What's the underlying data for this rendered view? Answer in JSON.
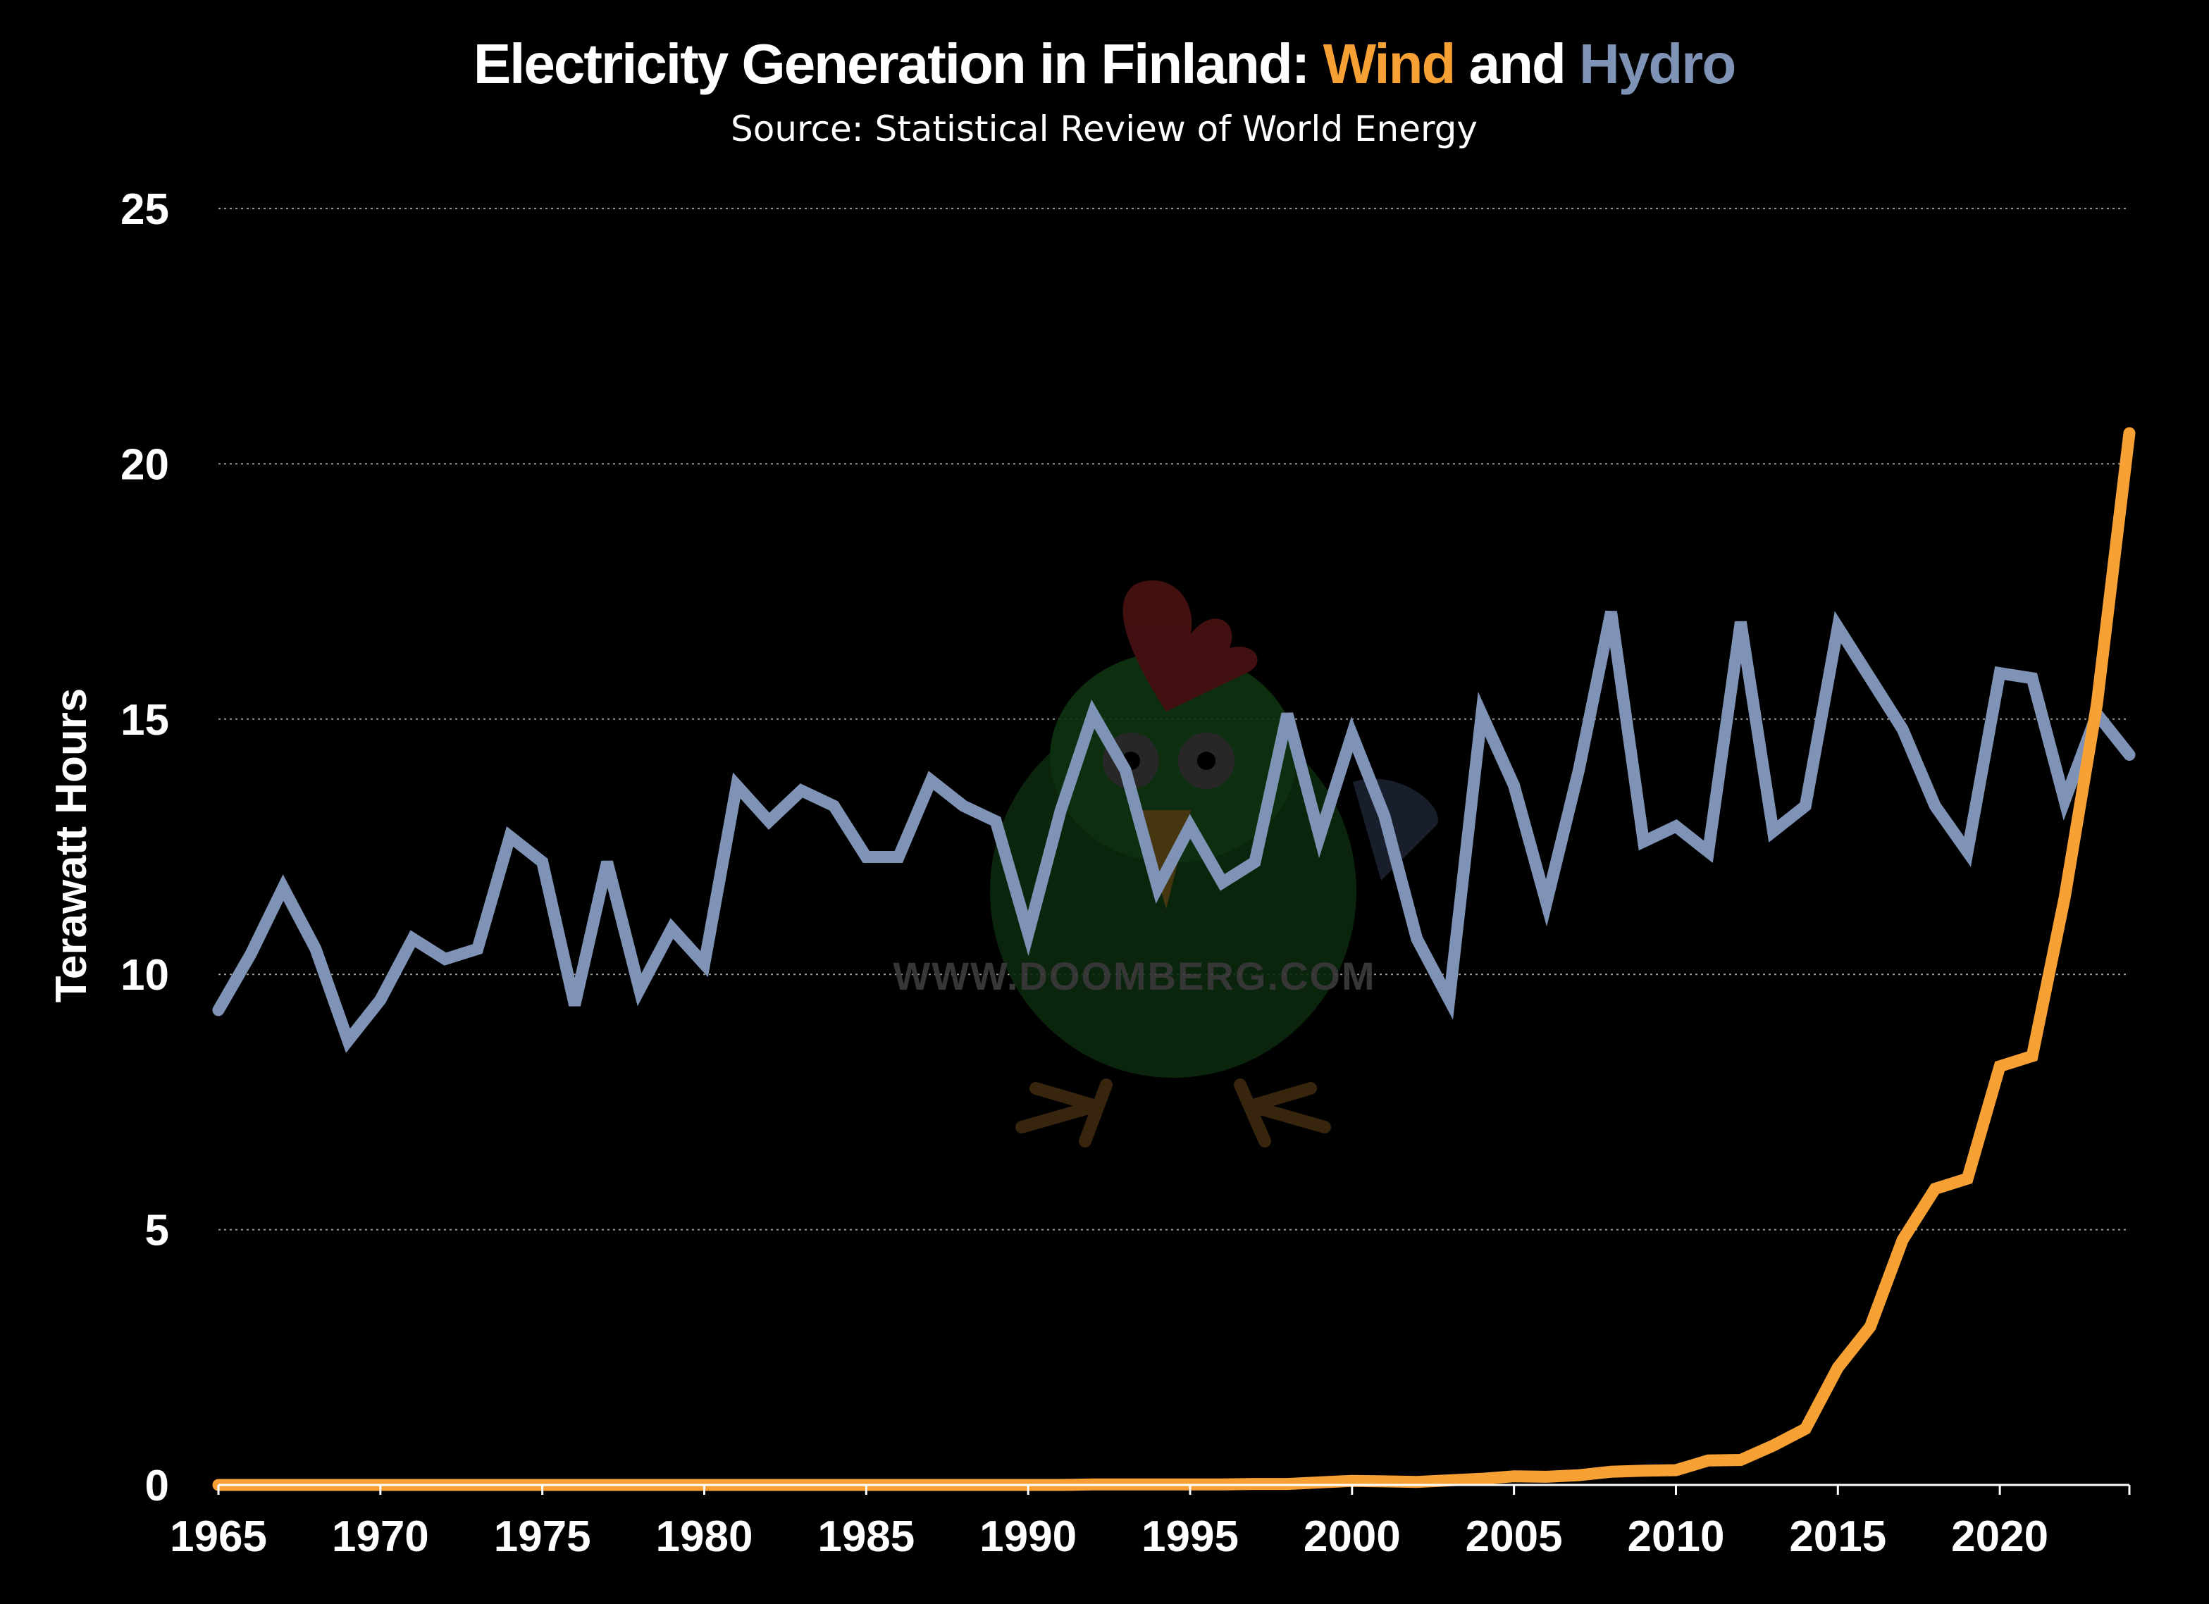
{
  "chart_data": {
    "type": "line",
    "title": {
      "prefix": "Electricity Generation in Finland: ",
      "wind_word": "Wind",
      "connector": " and ",
      "hydro_word": "Hydro"
    },
    "subtitle": "Source: Statistical Review of World Energy",
    "ylabel": "Terawatt Hours",
    "xlabel": "",
    "ylim": [
      0,
      25
    ],
    "xlim": [
      1965,
      2024
    ],
    "yticks": [
      0,
      5,
      10,
      15,
      20,
      25
    ],
    "xticks": [
      1965,
      1970,
      1975,
      1980,
      1985,
      1990,
      1995,
      2000,
      2005,
      2010,
      2015,
      2020
    ],
    "grid": "horizontal dotted",
    "watermark": "WWW.DOOMBERG.COM",
    "colors": {
      "background": "#000000",
      "wind": "#f7a135",
      "hydro": "#7e93b5",
      "text": "#ffffff",
      "grid": "#9a9a9a"
    },
    "series": [
      {
        "name": "Hydro",
        "color": "#7e93b5",
        "x": [
          1965,
          1966,
          1967,
          1968,
          1969,
          1970,
          1971,
          1972,
          1973,
          1974,
          1975,
          1976,
          1977,
          1978,
          1979,
          1980,
          1981,
          1982,
          1983,
          1984,
          1985,
          1986,
          1987,
          1988,
          1989,
          1990,
          1991,
          1992,
          1993,
          1994,
          1995,
          1996,
          1997,
          1998,
          1999,
          2000,
          2001,
          2002,
          2003,
          2004,
          2005,
          2006,
          2007,
          2008,
          2009,
          2010,
          2011,
          2012,
          2013,
          2014,
          2015,
          2016,
          2017,
          2018,
          2019,
          2020,
          2021,
          2022,
          2023,
          2024
        ],
        "values": [
          9.3,
          10.4,
          11.7,
          10.5,
          8.7,
          9.5,
          10.7,
          10.3,
          10.5,
          12.7,
          12.2,
          9.4,
          12.2,
          9.7,
          10.9,
          10.2,
          13.7,
          13.0,
          13.6,
          13.3,
          12.3,
          12.3,
          13.8,
          13.3,
          13.0,
          10.8,
          13.2,
          15.1,
          14.0,
          11.7,
          12.9,
          11.8,
          12.2,
          15.1,
          12.7,
          14.7,
          13.1,
          10.7,
          9.5,
          15.1,
          13.7,
          11.4,
          14.0,
          17.1,
          12.6,
          12.9,
          12.4,
          16.9,
          12.8,
          13.3,
          16.8,
          15.8,
          14.8,
          13.3,
          12.4,
          15.9,
          15.8,
          13.4,
          15.1,
          14.3
        ]
      },
      {
        "name": "Wind",
        "color": "#f7a135",
        "x": [
          1965,
          1966,
          1967,
          1968,
          1969,
          1970,
          1971,
          1972,
          1973,
          1974,
          1975,
          1976,
          1977,
          1978,
          1979,
          1980,
          1981,
          1982,
          1983,
          1984,
          1985,
          1986,
          1987,
          1988,
          1989,
          1990,
          1991,
          1992,
          1993,
          1994,
          1995,
          1996,
          1997,
          1998,
          1999,
          2000,
          2001,
          2002,
          2003,
          2004,
          2005,
          2006,
          2007,
          2008,
          2009,
          2010,
          2011,
          2012,
          2013,
          2014,
          2015,
          2016,
          2017,
          2018,
          2019,
          2020,
          2021,
          2022,
          2023,
          2024
        ],
        "values": [
          0,
          0,
          0,
          0,
          0,
          0,
          0,
          0,
          0,
          0,
          0,
          0,
          0,
          0,
          0,
          0,
          0,
          0,
          0,
          0,
          0,
          0,
          0,
          0,
          0,
          0,
          0,
          0.01,
          0.01,
          0.01,
          0.01,
          0.01,
          0.02,
          0.02,
          0.05,
          0.08,
          0.07,
          0.06,
          0.09,
          0.12,
          0.17,
          0.16,
          0.19,
          0.26,
          0.28,
          0.29,
          0.48,
          0.49,
          0.77,
          1.1,
          2.3,
          3.1,
          4.8,
          5.8,
          6.0,
          8.2,
          8.4,
          11.5,
          15.3,
          20.6
        ]
      }
    ]
  }
}
